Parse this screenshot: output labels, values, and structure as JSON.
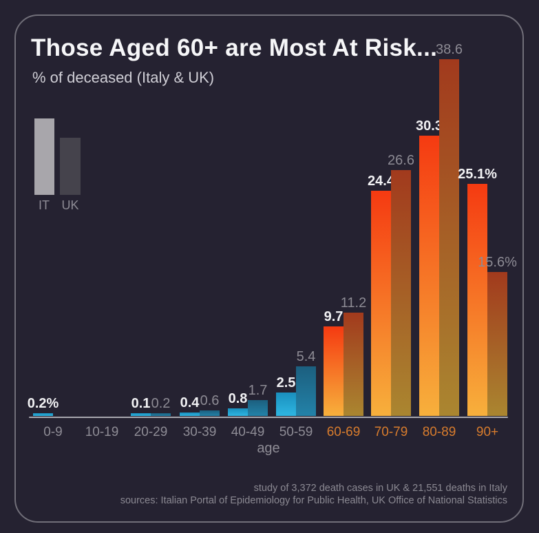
{
  "title": "Those Aged 60+ are Most At Risk...",
  "subtitle": "% of deceased (Italy & UK)",
  "legend": {
    "it_label": "IT",
    "uk_label": "UK"
  },
  "xlabel": "age",
  "footer": {
    "line1": "study of 3,372 death cases in UK & 21,551 deaths in Italy",
    "line2": "sources: Italian Portal of Epidemiology for Public Health, UK Office of National Statistics"
  },
  "colors": {
    "background": "#252231",
    "frame_border": "#716f79",
    "title_text": "#f6f6f8",
    "subtitle_text": "#d0cfd6",
    "axis_line": "#a9a8b0",
    "tick_gray": "#8e8c95",
    "tick_orange": "#d87c2d",
    "it_blue_top": "#1a8fbd",
    "it_blue_bottom": "#2eb6e2",
    "uk_blue_top": "#1c5f7f",
    "uk_blue_bottom": "#2382a8",
    "it_orange_top": "#f53a11",
    "it_orange_bottom": "#f7b03c",
    "uk_orange_top": "#a23a1d",
    "uk_orange_bottom": "#aa8630",
    "legend_it": "#a8a6ab",
    "legend_uk": "#45434c",
    "value_label_it": "#f2f2f4",
    "value_label_uk": "#8d8b94",
    "footer_text": "#8b8992"
  },
  "chart_data": {
    "type": "bar",
    "title": "Those Aged 60+ are Most At Risk...",
    "subtitle": "% of deceased (Italy & UK)",
    "xlabel": "age",
    "ylabel": "% of deceased",
    "categories": [
      "0-9",
      "10-19",
      "20-29",
      "30-39",
      "40-49",
      "50-59",
      "60-69",
      "70-79",
      "80-89",
      "90+"
    ],
    "series": [
      {
        "name": "IT",
        "values": [
          0.2,
          null,
          0.1,
          0.4,
          0.8,
          2.5,
          9.7,
          24.4,
          30.3,
          25.1
        ],
        "display_labels": [
          "0.2%",
          "",
          "0.1",
          "0.4",
          "0.8",
          "2.5",
          "9.7",
          "24.4",
          "30.3",
          "25.1%"
        ]
      },
      {
        "name": "UK",
        "values": [
          null,
          null,
          0.2,
          0.6,
          1.7,
          5.4,
          11.2,
          26.6,
          38.6,
          15.6
        ],
        "display_labels": [
          "",
          "",
          "0.2",
          "0.6",
          "1.7",
          "5.4",
          "11.2",
          "26.6",
          "38.6",
          "15.6%"
        ]
      }
    ],
    "highlight_categories": [
      "60-69",
      "70-79",
      "80-89",
      "90+"
    ],
    "ylim": [
      0,
      45
    ],
    "grid": false,
    "legend_position": "upper-left"
  }
}
